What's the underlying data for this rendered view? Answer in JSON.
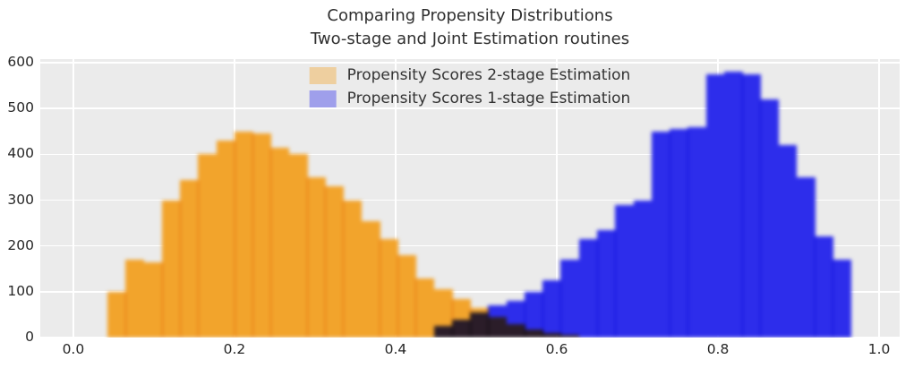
{
  "figure": {
    "title_line1": "Comparing Propensity Distributions",
    "title_line2": "Two-stage and Joint Estimation routines"
  },
  "legend": {
    "items": [
      {
        "label": "Propensity Scores 2-stage Estimation",
        "color": "#F2A42C"
      },
      {
        "label": "Propensity Scores 1-stage Estimation",
        "color": "#2D2DEB"
      }
    ]
  },
  "chart_data": {
    "type": "bar",
    "subtype": "histogram",
    "title": "Comparing Propensity Distributions\nTwo-stage and Joint Estimation routines",
    "xlabel": "",
    "ylabel": "",
    "xlim": [
      -0.041,
      1.0255
    ],
    "ylim": [
      0,
      608
    ],
    "x_ticks": [
      0,
      0.2,
      0.4,
      0.6,
      0.8,
      1.0
    ],
    "x_tick_labels": [
      "0.0",
      "0.2",
      "0.4",
      "0.6",
      "0.8",
      "1.0"
    ],
    "y_ticks": [
      0,
      100,
      200,
      300,
      400,
      500,
      600
    ],
    "y_tick_labels": [
      "0",
      "100",
      "200",
      "300",
      "400",
      "500",
      "600"
    ],
    "grid": true,
    "legend_position": "upper center",
    "plot_background": "#EBEBEB",
    "bin_width": 0.0225,
    "series": [
      {
        "name": "Propensity Scores 2-stage Estimation",
        "color": "#F2A42C",
        "bin_start": 0.0425,
        "counts": [
          100,
          170,
          165,
          300,
          345,
          400,
          430,
          450,
          445,
          415,
          400,
          350,
          330,
          300,
          255,
          215,
          180,
          130,
          105,
          85,
          65,
          45,
          30,
          18,
          10,
          5
        ]
      },
      {
        "name": "Propensity Scores 1-stage Estimation",
        "color": "#2D2DEB",
        "bin_start": 0.4475,
        "counts": [
          25,
          40,
          55,
          70,
          80,
          100,
          125,
          170,
          215,
          235,
          290,
          300,
          450,
          455,
          460,
          575,
          580,
          575,
          520,
          420,
          350,
          220,
          170
        ]
      }
    ]
  }
}
